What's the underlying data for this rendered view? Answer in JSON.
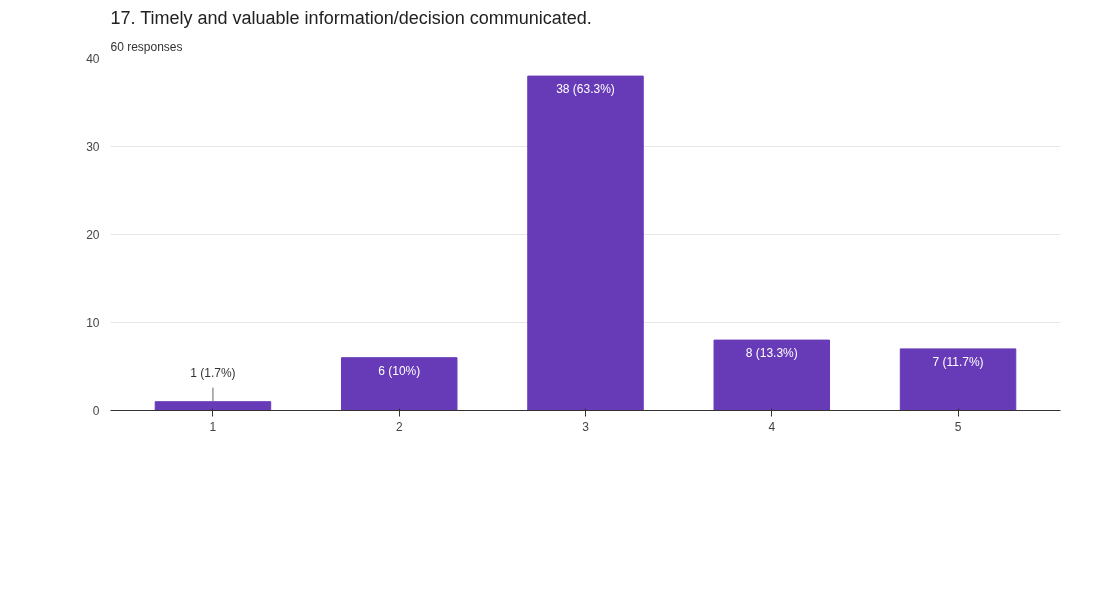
{
  "chart_data": {
    "type": "bar",
    "title": "17. Timely and valuable information/decision communicated.",
    "subtitle": "60 responses",
    "categories": [
      "1",
      "2",
      "3",
      "4",
      "5"
    ],
    "values": [
      1,
      6,
      38,
      8,
      7
    ],
    "value_labels": [
      "1 (1.7%)",
      "6 (10%)",
      "38 (63.3%)",
      "8 (13.3%)",
      "7 (11.7%)"
    ],
    "color": "#673ab7",
    "ylim": [
      0,
      40
    ],
    "yticks": [
      0,
      10,
      20,
      30,
      40
    ],
    "grid": "y"
  }
}
